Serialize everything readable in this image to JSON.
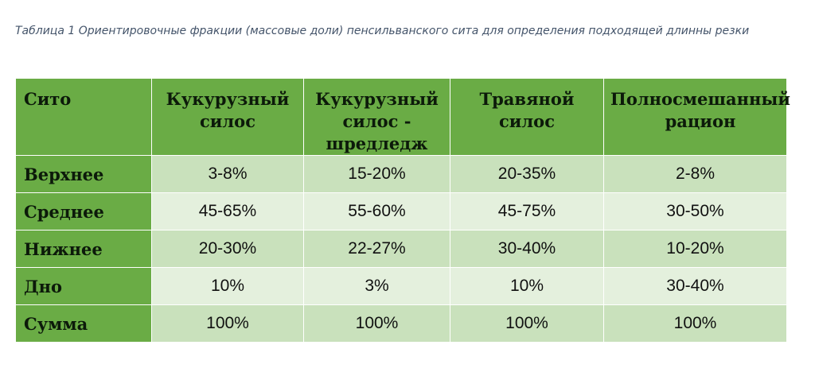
{
  "caption": "Таблица  1 Ориентировочные фракции (массовые доли) пенсильванского сита для определения подходящей длинны резки",
  "table": {
    "headers": [
      "Сито",
      "Кукурузный силос",
      "Кукурузный силос - шредледж",
      "Травяной силос",
      "Полносмешанный рацион"
    ],
    "rows": [
      {
        "label": "Верхнее",
        "values": [
          "3-8%",
          "15-20%",
          "20-35%",
          "2-8%"
        ]
      },
      {
        "label": "Среднее",
        "values": [
          "45-65%",
          "55-60%",
          "45-75%",
          "30-50%"
        ]
      },
      {
        "label": "Нижнее",
        "values": [
          "20-30%",
          "22-27%",
          "30-40%",
          "10-20%"
        ]
      },
      {
        "label": "Дно",
        "values": [
          "10%",
          "3%",
          "10%",
          "30-40%"
        ]
      },
      {
        "label": "Сумма",
        "values": [
          "100%",
          "100%",
          "100%",
          "100%"
        ]
      }
    ]
  },
  "colors": {
    "header_green": "#6aac45",
    "row_dark": "#c9e1bc",
    "row_light": "#e4f0dd",
    "caption_text": "#44546a"
  }
}
